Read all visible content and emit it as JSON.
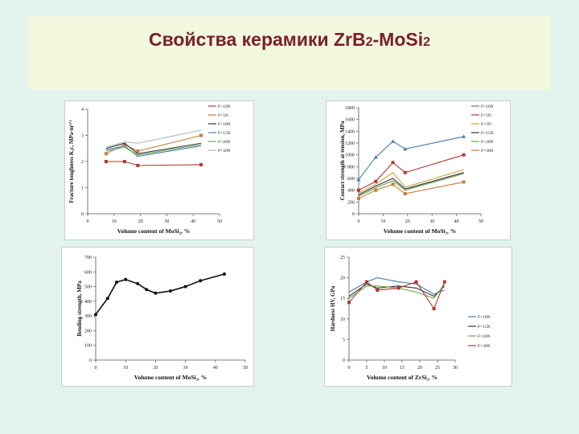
{
  "slide": {
    "title_main": "Свойства керамики ZrB",
    "title_sub1": "2",
    "title_mid": "-MoSi",
    "title_sub2": "2"
  },
  "colors": {
    "title": "#7a1f2a",
    "bg": "#e3f3ee",
    "band": "#f1f8dd"
  },
  "chart_data": [
    {
      "type": "line",
      "id": "c1",
      "title": "",
      "xlabel": "Volume content of MoSi₂, %",
      "ylabel": "Fracture toughness K₁c, MPa·m¹ᐟ²",
      "xlim": [
        0,
        50
      ],
      "ylim": [
        0,
        4
      ],
      "xticks": [
        "0",
        "10",
        "20",
        "30",
        "40",
        "50"
      ],
      "yticks": [
        "0",
        "1",
        "2",
        "3",
        "4"
      ],
      "x": [
        7,
        14,
        19,
        43
      ],
      "series": [
        {
          "name": "F=10N",
          "color": "#b03a2e",
          "marker": "square",
          "values": [
            2.0,
            2.0,
            1.85,
            1.88
          ]
        },
        {
          "name": "F=5N",
          "color": "#c97b3a",
          "marker": "square",
          "values": [
            2.3,
            2.65,
            2.4,
            3.0
          ]
        },
        {
          "name": "F=10N",
          "color": "#333333",
          "marker": "none",
          "values": [
            2.5,
            2.7,
            2.3,
            2.7
          ]
        },
        {
          "name": "F=15N",
          "color": "#4a7bb0",
          "marker": "none",
          "values": [
            2.45,
            2.6,
            2.2,
            2.6
          ]
        },
        {
          "name": "F=20N",
          "color": "#6aa84f",
          "marker": "none",
          "values": [
            2.4,
            2.55,
            2.25,
            2.65
          ]
        },
        {
          "name": "F=30N",
          "color": "#9fb4c8",
          "marker": "none",
          "values": [
            2.55,
            2.75,
            2.7,
            3.2
          ]
        }
      ]
    },
    {
      "type": "line",
      "id": "c2",
      "title": "",
      "xlabel": "Volume content of MoSi₂, %",
      "ylabel": "Contact strength at tension, MPa",
      "xlim": [
        0,
        50
      ],
      "ylim": [
        0,
        1800
      ],
      "xticks": [
        "0",
        "10",
        "20",
        "30",
        "40",
        "50"
      ],
      "yticks": [
        "0",
        "200",
        "400",
        "600",
        "800",
        "1000",
        "1200",
        "1400",
        "1600",
        "1800"
      ],
      "x": [
        0,
        7,
        14,
        19,
        43
      ],
      "series": [
        {
          "name": "F=10N",
          "color": "#4a7bb0",
          "marker": "triangle",
          "values": [
            580,
            960,
            1230,
            1100,
            1310
          ]
        },
        {
          "name": "F=5N",
          "color": "#b03a2e",
          "marker": "square",
          "values": [
            400,
            550,
            870,
            700,
            1000
          ]
        },
        {
          "name": "F=5N",
          "color": "#c9a43a",
          "marker": "none",
          "values": [
            350,
            500,
            700,
            450,
            750
          ]
        },
        {
          "name": "F=15N",
          "color": "#333333",
          "marker": "none",
          "values": [
            320,
            470,
            600,
            420,
            700
          ]
        },
        {
          "name": "F=20N",
          "color": "#6aa84f",
          "marker": "none",
          "values": [
            300,
            440,
            560,
            400,
            680
          ]
        },
        {
          "name": "F=30N",
          "color": "#c97b3a",
          "marker": "square",
          "values": [
            260,
            400,
            500,
            340,
            540
          ]
        }
      ]
    },
    {
      "type": "line",
      "id": "c3",
      "title": "",
      "xlabel": "Volume content of MoSi₂, %",
      "ylabel": "Bending strength, MPa",
      "xlim": [
        0,
        50
      ],
      "ylim": [
        0,
        700
      ],
      "xticks": [
        "0",
        "10",
        "20",
        "30",
        "40",
        "50"
      ],
      "yticks": [
        "0",
        "100",
        "200",
        "300",
        "400",
        "500",
        "600",
        "700"
      ],
      "x": [
        0,
        4,
        7,
        10,
        14,
        17,
        20,
        25,
        30,
        35,
        43
      ],
      "series": [
        {
          "name": "Bending strength",
          "color": "#111111",
          "marker": "circle",
          "values": [
            310,
            420,
            530,
            548,
            520,
            480,
            455,
            470,
            500,
            540,
            585
          ]
        }
      ]
    },
    {
      "type": "line",
      "id": "c4",
      "title": "",
      "xlabel": "Volume content of ZrSi₂, %",
      "ylabel": "Hardness HV, GPa",
      "xlim": [
        0,
        30
      ],
      "ylim": [
        0,
        25
      ],
      "xticks": [
        "0",
        "5",
        "10",
        "15",
        "20",
        "25",
        "30"
      ],
      "yticks": [
        "0",
        "5",
        "10",
        "15",
        "20",
        "25"
      ],
      "x": [
        0,
        5,
        8,
        14,
        19,
        24,
        27
      ],
      "series": [
        {
          "name": "F=10N",
          "color": "#4a7bb0",
          "marker": "none",
          "values": [
            16.5,
            19.0,
            20.0,
            19.0,
            18.5,
            16.0,
            17.0
          ]
        },
        {
          "name": "F=15N",
          "color": "#333333",
          "marker": "none",
          "values": [
            15.5,
            18.5,
            17.5,
            18.0,
            17.5,
            15.5,
            18.0
          ]
        },
        {
          "name": "F=20N",
          "color": "#6aa84f",
          "marker": "none",
          "values": [
            15.0,
            18.0,
            18.0,
            17.5,
            16.5,
            15.0,
            18.5
          ]
        },
        {
          "name": "F=30N",
          "color": "#b03a2e",
          "marker": "square",
          "values": [
            14.0,
            19.0,
            17.0,
            17.5,
            19.0,
            12.5,
            19.0
          ]
        }
      ]
    }
  ]
}
